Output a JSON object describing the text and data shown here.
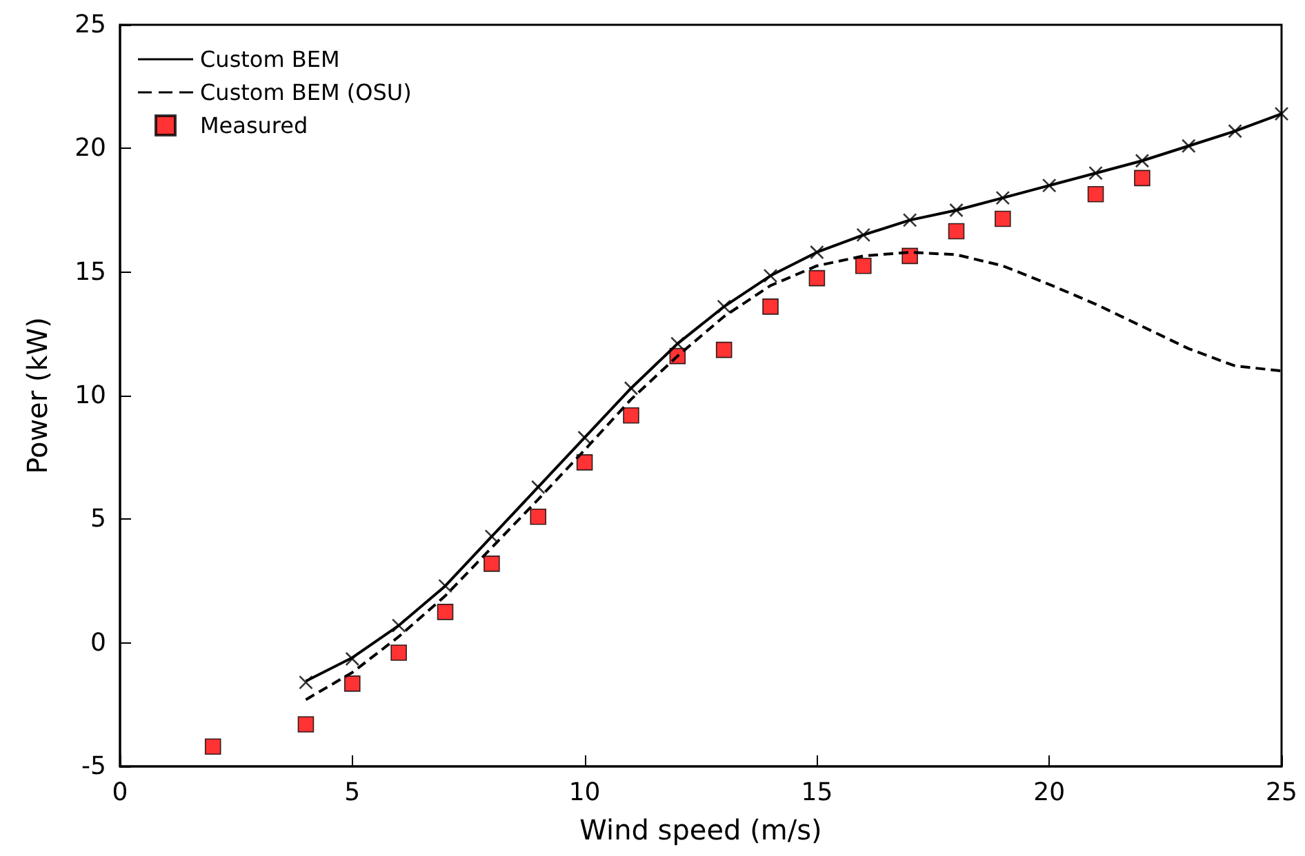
{
  "chart_data": {
    "type": "line",
    "xlabel": "Wind speed (m/s)",
    "ylabel": "Power (kW)",
    "xlim": [
      0,
      25
    ],
    "xticks": [
      0,
      5,
      10,
      15,
      20,
      25
    ],
    "ylim": [
      -5,
      25
    ],
    "yticks": [
      -5,
      0,
      5,
      10,
      15,
      20,
      25
    ],
    "grid": false,
    "legend": "top left",
    "series": [
      {
        "name": "Custom BEM",
        "line_style": "solid",
        "marker": "none",
        "color": "#000000",
        "x": [
          4,
          5,
          6,
          7,
          8,
          9,
          10,
          11,
          12,
          13,
          14,
          15,
          16,
          17,
          18,
          19,
          20,
          21,
          22,
          23,
          24,
          25
        ],
        "values": [
          -1.55,
          -0.6,
          0.7,
          2.3,
          4.3,
          6.3,
          8.3,
          10.3,
          12.1,
          13.6,
          14.85,
          15.8,
          16.5,
          17.1,
          17.5,
          18.0,
          18.5,
          19.0,
          19.5,
          20.1,
          20.7,
          21.4
        ]
      },
      {
        "name": "Custom BEM (OSU)",
        "line_style": "dashed",
        "marker": "none",
        "color": "#000000",
        "x": [
          4,
          5,
          6,
          7,
          8,
          9,
          10,
          11,
          12,
          13,
          14,
          15,
          16,
          17,
          18,
          19,
          20,
          21,
          22,
          23,
          24,
          25
        ],
        "values": [
          -2.3,
          -1.2,
          0.25,
          1.9,
          3.85,
          5.8,
          7.8,
          9.85,
          11.6,
          13.2,
          14.45,
          15.25,
          15.65,
          15.8,
          15.7,
          15.25,
          14.5,
          13.7,
          12.8,
          11.9,
          11.2,
          11.0
        ]
      },
      {
        "type": "scatter",
        "marker": "cross",
        "color": "#000000",
        "x": [
          4,
          5,
          6,
          7,
          8,
          9,
          10,
          11,
          12,
          13,
          14,
          15,
          16,
          17,
          18,
          19,
          20,
          21,
          22,
          23,
          24,
          25
        ],
        "values": [
          -1.6,
          -0.65,
          0.7,
          2.3,
          4.3,
          6.3,
          8.3,
          10.3,
          12.1,
          13.6,
          14.85,
          15.8,
          16.5,
          17.1,
          17.5,
          18.0,
          18.5,
          19.0,
          19.5,
          20.1,
          20.7,
          21.4
        ]
      },
      {
        "name": "Measured",
        "type": "scatter",
        "marker": "square",
        "color": "#ff0000",
        "x": [
          2,
          4,
          5,
          6,
          7,
          8,
          9,
          10,
          11,
          12,
          13,
          14,
          15,
          16,
          17,
          18,
          19,
          21,
          22
        ],
        "values": [
          -4.2,
          -3.3,
          -1.65,
          -0.4,
          1.25,
          3.2,
          5.1,
          7.3,
          9.2,
          11.6,
          11.85,
          13.6,
          14.75,
          15.25,
          15.65,
          16.65,
          17.15,
          18.15,
          18.8
        ]
      }
    ]
  }
}
